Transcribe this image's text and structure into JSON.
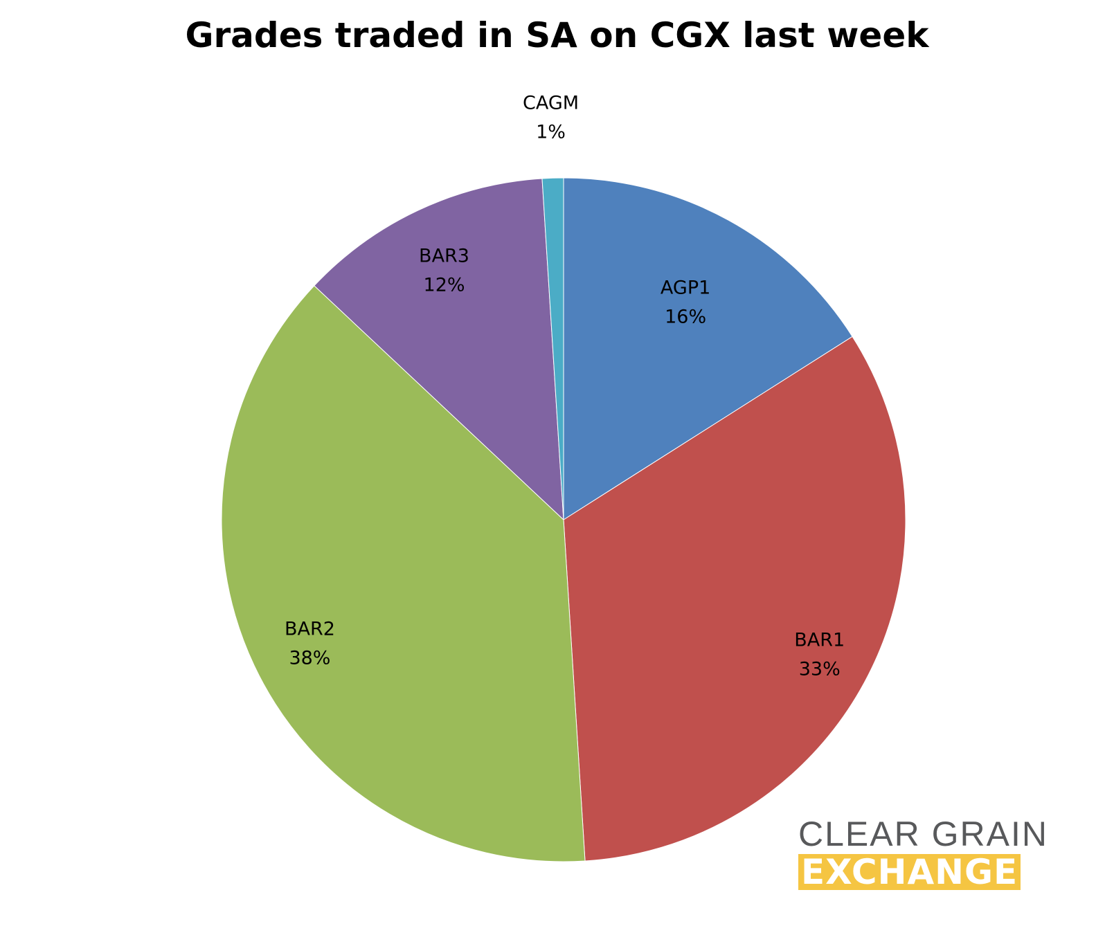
{
  "chart_data": {
    "type": "pie",
    "title": "Grades traded in SA on CGX last week",
    "slices": [
      {
        "label": "AGP1",
        "value": 16,
        "display": "16%",
        "color": "#4f81bd"
      },
      {
        "label": "BAR1",
        "value": 33,
        "display": "33%",
        "color": "#c0504d"
      },
      {
        "label": "BAR2",
        "value": 38,
        "display": "38%",
        "color": "#9bbb59"
      },
      {
        "label": "BAR3",
        "value": 12,
        "display": "12%",
        "color": "#8064a2"
      },
      {
        "label": "CAGM",
        "value": 1,
        "display": "1%",
        "color": "#4bacc6"
      }
    ],
    "start_angle": "12 o'clock",
    "direction": "clockwise",
    "legend": "none"
  },
  "logo": {
    "line1": "CLEAR GRAIN",
    "line2": "EXCHANGE"
  }
}
